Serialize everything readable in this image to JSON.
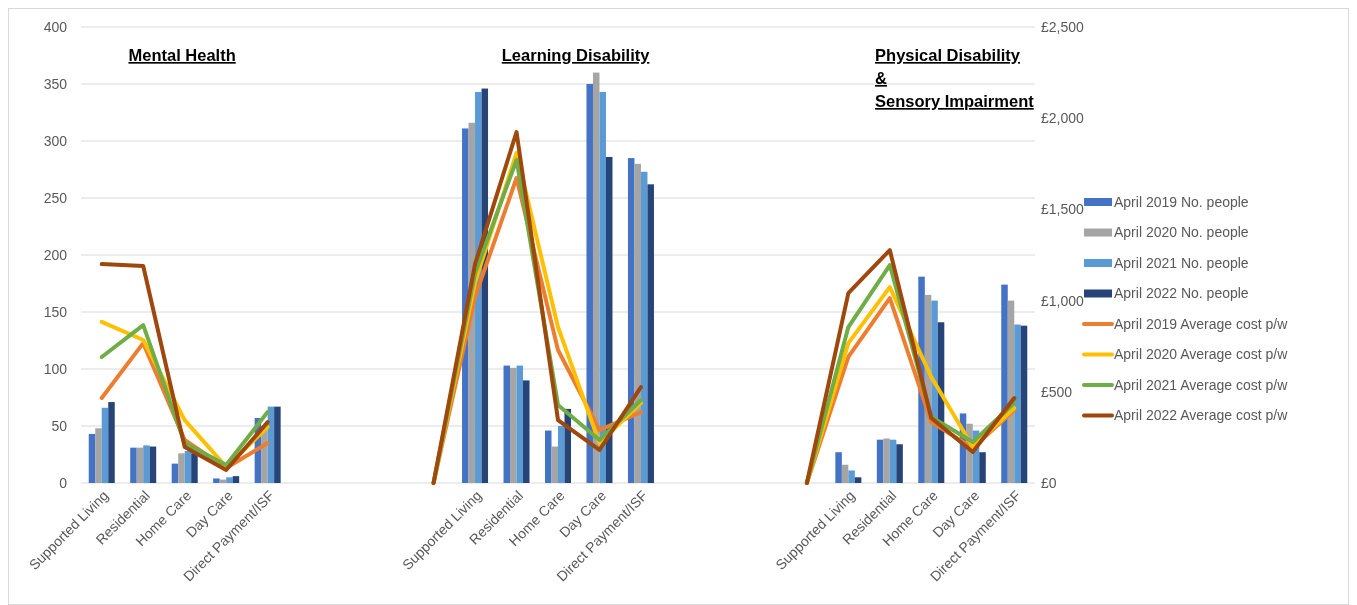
{
  "chart_data": {
    "type": "bar",
    "categories": [
      "Supported Living",
      "Residential",
      "Home Care",
      "Day Care",
      "Direct Payment/ISF",
      null,
      null,
      null,
      null,
      "Supported Living",
      "Residential",
      "Home Care",
      "Day Care",
      "Direct Payment/ISF",
      null,
      null,
      null,
      null,
      "Supported Living",
      "Residential",
      "Home Care",
      "Day Care",
      "Direct Payment/ISF"
    ],
    "series": [
      {
        "name": "April 2019 No. people",
        "color": "#4472c4",
        "values": [
          43,
          31,
          17,
          4,
          57,
          null,
          null,
          null,
          null,
          311,
          103,
          46,
          350,
          285,
          null,
          null,
          null,
          null,
          27,
          38,
          181,
          61,
          174
        ]
      },
      {
        "name": "April 2020 No. people",
        "color": "#a5a5a5",
        "values": [
          48,
          31,
          26,
          3,
          50,
          null,
          null,
          null,
          null,
          316,
          101,
          32,
          360,
          280,
          null,
          null,
          null,
          null,
          16,
          39,
          165,
          52,
          160
        ]
      },
      {
        "name": "April 2021 No. people",
        "color": "#5b9bd5",
        "values": [
          66,
          33,
          28,
          5,
          67,
          null,
          null,
          null,
          null,
          343,
          103,
          50,
          343,
          273,
          null,
          null,
          null,
          null,
          11,
          38,
          160,
          46,
          139
        ]
      },
      {
        "name": "April 2022 No. people",
        "color": "#264478",
        "values": [
          71,
          32,
          26,
          6,
          67,
          null,
          null,
          null,
          null,
          346,
          90,
          65,
          286,
          262,
          null,
          null,
          null,
          null,
          5,
          34,
          141,
          27,
          138
        ]
      },
      {
        "name": "April 2019 Average cost p/w",
        "type": "line",
        "axis": "y2",
        "color": "#ed7d31",
        "values": [
          466,
          767,
          236,
          82,
          219,
          null,
          null,
          null,
          0,
          1020,
          1672,
          729,
          290,
          389,
          null,
          null,
          null,
          0,
          691,
          1014,
          334,
          192,
          400
        ]
      },
      {
        "name": "April 2020 Average cost p/w",
        "type": "line",
        "axis": "y2",
        "color": "#ffc000",
        "values": [
          883,
          784,
          345,
          88,
          307,
          null,
          null,
          null,
          0,
          1100,
          1809,
          855,
          219,
          439,
          null,
          null,
          null,
          0,
          767,
          1074,
          581,
          197,
          411
        ]
      },
      {
        "name": "April 2021 Average cost p/w",
        "type": "line",
        "axis": "y2",
        "color": "#70ad47",
        "values": [
          691,
          866,
          219,
          99,
          389,
          null,
          null,
          null,
          0,
          1150,
          1771,
          428,
          236,
          455,
          null,
          null,
          null,
          0,
          855,
          1195,
          362,
          225,
          439
        ]
      },
      {
        "name": "April 2022 Average cost p/w",
        "type": "line",
        "axis": "y2",
        "color": "#9e480e",
        "values": [
          1200,
          1190,
          197,
          71,
          334,
          null,
          null,
          null,
          0,
          1200,
          1924,
          345,
          181,
          526,
          null,
          null,
          null,
          0,
          1041,
          1277,
          356,
          170,
          466
        ]
      }
    ],
    "ylim": [
      0,
      400
    ],
    "yticks": [
      0,
      50,
      100,
      150,
      200,
      250,
      300,
      350,
      400
    ],
    "y2lim": [
      0,
      2500
    ],
    "y2ticks": [
      {
        "value": 0,
        "label": "£0"
      },
      {
        "value": 500,
        "label": "£500"
      },
      {
        "value": 1000,
        "label": "£1,000"
      },
      {
        "value": 1500,
        "label": "£1,500"
      },
      {
        "value": 2000,
        "label": "£2,000"
      },
      {
        "value": 2500,
        "label": "£2,500"
      }
    ],
    "annotations": [
      "Mental Health",
      "Learning Disability",
      "Physical Disability\n&\nSensory Impairment"
    ],
    "grid": "y",
    "legend": "right",
    "line_style": "solid"
  }
}
